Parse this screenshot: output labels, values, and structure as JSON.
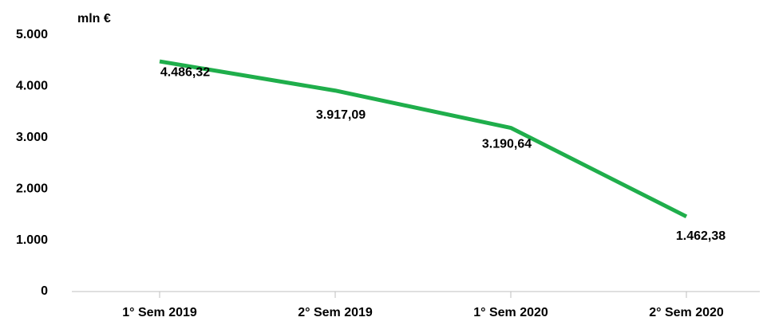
{
  "chart_data": {
    "type": "line",
    "y_axis_label": "mln €",
    "categories": [
      "1° Sem 2019",
      "2° Sem 2019",
      "1° Sem 2020",
      "2° Sem 2020"
    ],
    "series": [
      {
        "color": "#1fae4b",
        "values": [
          4486.32,
          3917.09,
          3190.64,
          1462.38
        ],
        "value_labels": [
          "4.486,32",
          "3.917,09",
          "3.190,64",
          "1.462,38"
        ]
      }
    ],
    "ylim": [
      0,
      5000
    ],
    "yticks": [
      0,
      {
        "value": 1000,
        "label": "1.000"
      },
      {
        "value": 2000,
        "label": "2.000"
      },
      {
        "value": 3000,
        "label": "3.000"
      },
      {
        "value": 4000,
        "label": "4.000"
      },
      {
        "value": 5000,
        "label": "5.000"
      }
    ]
  }
}
